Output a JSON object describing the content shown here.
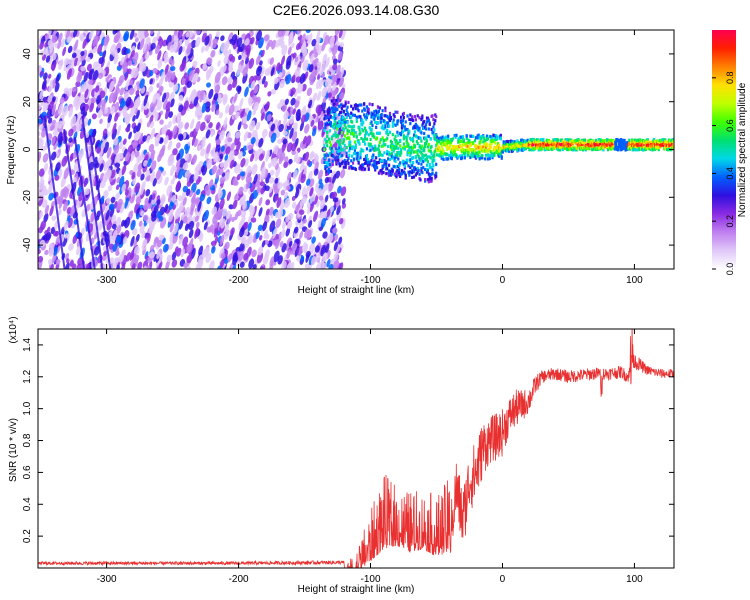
{
  "figure": {
    "title": "C2E6.2026.093.14.08.G30"
  },
  "chart_data": [
    {
      "type": "heatmap",
      "xlabel": "Height of straight line (km)",
      "ylabel": "Frequency (Hz)",
      "xlim": [
        -352,
        130
      ],
      "ylim": [
        -50,
        50
      ],
      "x_ticks": [
        -300,
        -200,
        -100,
        0,
        100
      ],
      "x_tick_labels": [
        "-300",
        "-200",
        "-100",
        "0",
        "100"
      ],
      "y_ticks": [
        -40,
        -20,
        0,
        20,
        40
      ],
      "y_tick_labels": [
        "-40",
        "-20",
        "0",
        "20",
        "40"
      ],
      "colorbar": {
        "label": "Normalized spectral amplitude",
        "range": [
          0,
          1
        ],
        "ticks": [
          0.0,
          0.2,
          0.4,
          0.6,
          0.8
        ],
        "tick_labels": [
          "0.0",
          "0.2",
          "0.4",
          "0.6",
          "0.8"
        ],
        "colors": [
          "#ffffff",
          "#e0c8f8",
          "#c080f0",
          "#8a2be2",
          "#3010e0",
          "#0060ff",
          "#00d8e8",
          "#00e070",
          "#40ff00",
          "#c0ff00",
          "#ffe000",
          "#ff8000",
          "#ff2000",
          "#ff0050"
        ]
      },
      "signal_track": [
        [
          -130,
          8
        ],
        [
          -120,
          6
        ],
        [
          -100,
          5
        ],
        [
          -80,
          2
        ],
        [
          -60,
          0
        ],
        [
          -40,
          1
        ],
        [
          -20,
          1
        ],
        [
          0,
          1
        ],
        [
          20,
          2
        ],
        [
          60,
          2
        ],
        [
          90,
          2
        ],
        [
          130,
          2
        ]
      ],
      "noise_extent_x": [
        -352,
        -120
      ]
    },
    {
      "type": "line",
      "xlabel": "Height of straight line (km)",
      "ylabel": "SNR (10 * v/v)",
      "y_scale_label": "(x10⁴)",
      "xlim": [
        -352,
        130
      ],
      "ylim": [
        0,
        1.5
      ],
      "x_ticks": [
        -300,
        -200,
        -100,
        0,
        100
      ],
      "x_tick_labels": [
        "-300",
        "-200",
        "-100",
        "0",
        "100"
      ],
      "y_ticks": [
        0.2,
        0.4,
        0.6,
        0.8,
        1.0,
        1.2,
        1.4
      ],
      "y_tick_labels": [
        "0.2",
        "0.4",
        "0.6",
        "0.8",
        "1.0",
        "1.2",
        "1.4"
      ],
      "series": [
        {
          "name": "SNR",
          "color": "#e83030",
          "x": [
            -352,
            -200,
            -120,
            -110,
            -100,
            -90,
            -80,
            -70,
            -60,
            -50,
            -40,
            -35,
            -30,
            -25,
            -20,
            -15,
            -10,
            -5,
            0,
            5,
            10,
            15,
            20,
            25,
            30,
            40,
            50,
            60,
            70,
            80,
            90,
            95,
            100,
            110,
            120,
            130
          ],
          "y": [
            0.03,
            0.03,
            0.035,
            0.05,
            0.12,
            0.2,
            0.22,
            0.18,
            0.2,
            0.15,
            0.18,
            0.5,
            0.3,
            0.55,
            0.6,
            0.75,
            0.8,
            0.82,
            0.85,
            0.95,
            1.0,
            1.02,
            1.05,
            1.15,
            1.2,
            1.22,
            1.2,
            1.21,
            1.22,
            1.22,
            1.23,
            1.2,
            1.3,
            1.24,
            1.22,
            1.22
          ],
          "noise": [
            0.01,
            0.01,
            0.012,
            0.05,
            0.1,
            0.15,
            0.12,
            0.12,
            0.12,
            0.12,
            0.15,
            0.2,
            0.2,
            0.2,
            0.2,
            0.18,
            0.15,
            0.15,
            0.15,
            0.12,
            0.12,
            0.1,
            0.08,
            0.06,
            0.04,
            0.04,
            0.04,
            0.04,
            0.04,
            0.04,
            0.04,
            0.04,
            0.05,
            0.03,
            0.03,
            0.03
          ]
        }
      ]
    }
  ]
}
